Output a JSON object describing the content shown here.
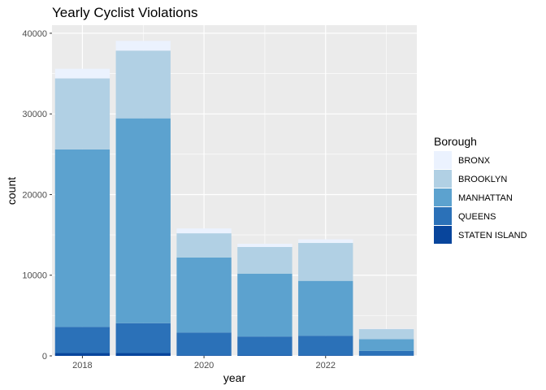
{
  "chart_data": {
    "type": "bar",
    "stacked": true,
    "title": "Yearly Cyclist Violations",
    "xlabel": "year",
    "ylabel": "count",
    "x": [
      2018,
      2019,
      2020,
      2021,
      2022,
      2023
    ],
    "x_ticks": [
      "2018",
      "2020",
      "2022"
    ],
    "y_ticks": [
      "0",
      "10000",
      "20000",
      "30000",
      "40000"
    ],
    "ylim": [
      0,
      41000
    ],
    "xlim": [
      2017.5,
      2023.5
    ],
    "grid": true,
    "legend_title": "Borough",
    "legend_position": "right",
    "series": [
      {
        "name": "STATEN ISLAND",
        "color": "#08459c",
        "values": [
          350,
          350,
          60,
          50,
          60,
          20
        ]
      },
      {
        "name": "QUEENS",
        "color": "#2b71b8",
        "values": [
          3250,
          3700,
          2840,
          2350,
          2440,
          600
        ]
      },
      {
        "name": "MANHATTAN",
        "color": "#5ca2cf",
        "values": [
          22000,
          25400,
          9300,
          7800,
          6800,
          1450
        ]
      },
      {
        "name": "BROOKLYN",
        "color": "#b1d0e4",
        "values": [
          8800,
          8400,
          3000,
          3300,
          4700,
          1250
        ]
      },
      {
        "name": "BRONX",
        "color": "#ebf2fe",
        "values": [
          1200,
          1200,
          600,
          400,
          450,
          30
        ]
      }
    ],
    "legend_order": [
      "BRONX",
      "BROOKLYN",
      "MANHATTAN",
      "QUEENS",
      "STATEN ISLAND"
    ]
  }
}
